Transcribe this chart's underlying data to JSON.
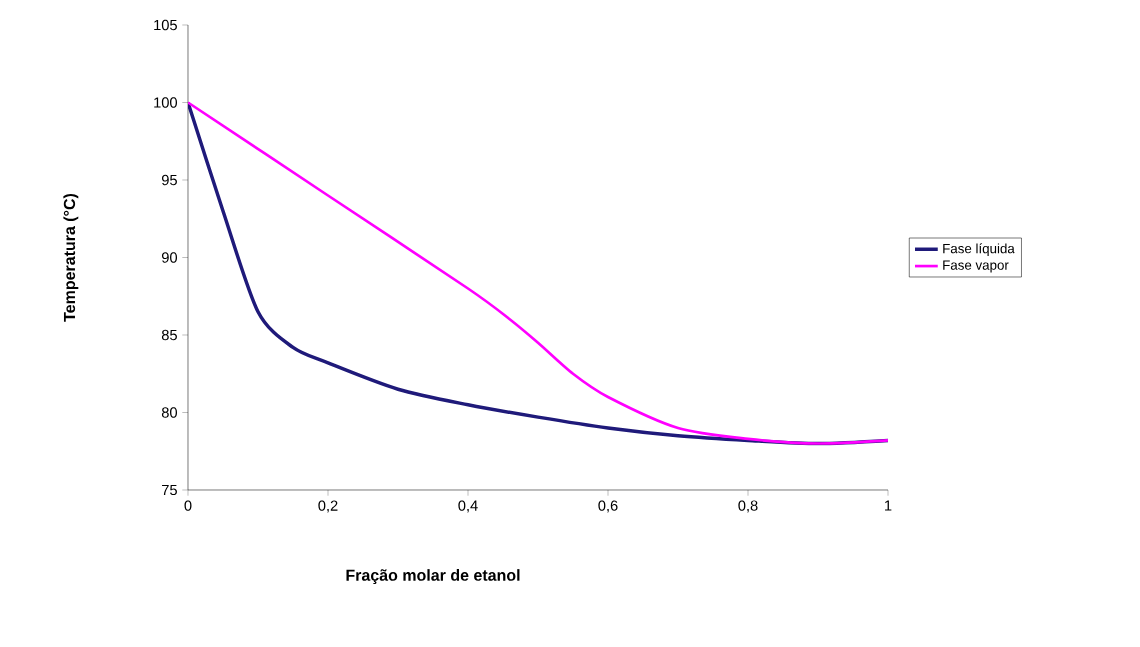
{
  "chart_data": {
    "type": "line",
    "xlabel": "Fração molar de etanol",
    "ylabel": "Temperatura (°C)",
    "xlim": [
      0,
      1
    ],
    "ylim": [
      75,
      105
    ],
    "xticks": [
      {
        "value": 0,
        "label": "0"
      },
      {
        "value": 0.2,
        "label": "0,2"
      },
      {
        "value": 0.4,
        "label": "0,4"
      },
      {
        "value": 0.6,
        "label": "0,6"
      },
      {
        "value": 0.8,
        "label": "0,8"
      },
      {
        "value": 1,
        "label": "1"
      }
    ],
    "yticks": [
      75,
      80,
      85,
      90,
      95,
      100,
      105
    ],
    "grid": false,
    "legend": "right",
    "marker": "none",
    "line_style": "solid",
    "series": [
      {
        "name": "Fase líquida",
        "color": "#1f1a7a",
        "x": [
          0,
          0.05,
          0.1,
          0.15,
          0.2,
          0.3,
          0.4,
          0.5,
          0.6,
          0.7,
          0.8,
          0.9,
          1
        ],
        "values": [
          100,
          93,
          86.5,
          84.2,
          83.2,
          81.5,
          80.5,
          79.7,
          79,
          78.5,
          78.2,
          78,
          78.2
        ]
      },
      {
        "name": "Fase vapor",
        "color": "#ff00ff",
        "x": [
          0,
          0.2,
          0.4,
          0.46,
          0.5,
          0.55,
          0.6,
          0.7,
          0.8,
          0.9,
          1
        ],
        "values": [
          100,
          94,
          88,
          86,
          84.5,
          82.5,
          81,
          79,
          78.3,
          78,
          78.2
        ]
      }
    ]
  }
}
